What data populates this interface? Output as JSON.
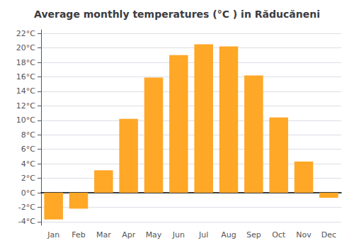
{
  "chart_data": {
    "type": "bar",
    "title": "Average monthly temperatures (°C ) in Răducăneni",
    "categories": [
      "Jan",
      "Feb",
      "Mar",
      "Apr",
      "May",
      "Jun",
      "Jul",
      "Aug",
      "Sep",
      "Oct",
      "Nov",
      "Dec"
    ],
    "values": [
      -3.7,
      -2.2,
      3.1,
      10.2,
      15.9,
      19.0,
      20.5,
      20.2,
      16.2,
      10.4,
      4.3,
      -0.7
    ],
    "color": "#FFA726",
    "ylim": [
      -4.5,
      22.5
    ],
    "yticks": [
      {
        "value": -4,
        "label": "-4°C"
      },
      {
        "value": -2,
        "label": "-2°C"
      },
      {
        "value": 0,
        "label": "0°C"
      },
      {
        "value": 2,
        "label": "2°C"
      },
      {
        "value": 4,
        "label": "4°C"
      },
      {
        "value": 6,
        "label": "6°C"
      },
      {
        "value": 8,
        "label": "8°C"
      },
      {
        "value": 10,
        "label": "10°C"
      },
      {
        "value": 12,
        "label": "12°C"
      },
      {
        "value": 14,
        "label": "14°C"
      },
      {
        "value": 16,
        "label": "16°C"
      },
      {
        "value": 18,
        "label": "18°C"
      },
      {
        "value": 20,
        "label": "20°C"
      },
      {
        "value": 22,
        "label": "22°C"
      }
    ],
    "grid": true
  }
}
